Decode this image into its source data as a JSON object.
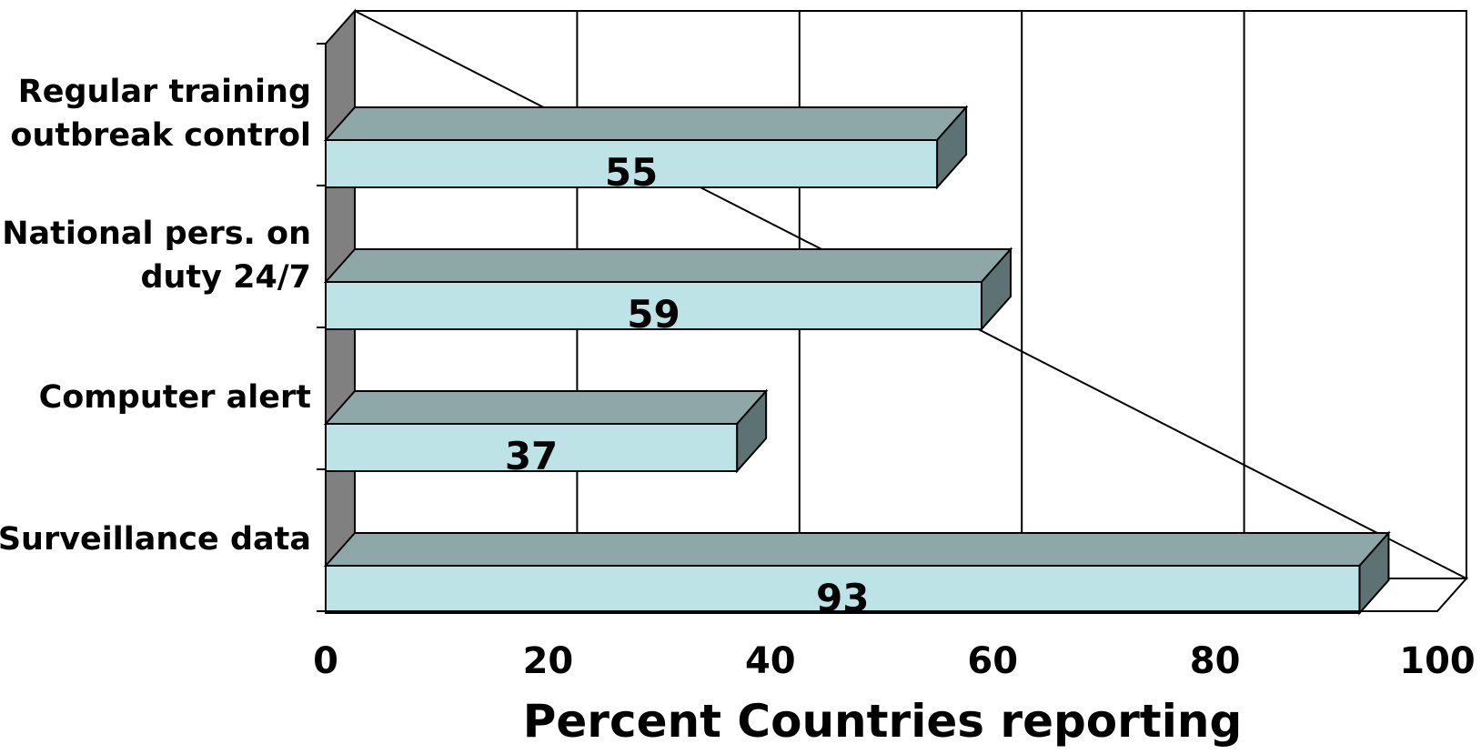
{
  "chart_data": {
    "type": "bar",
    "orientation": "horizontal",
    "categories": [
      [
        "Regular training",
        "outbreak control"
      ],
      [
        "National pers. on",
        "duty 24/7"
      ],
      [
        "Computer alert"
      ],
      [
        "Surveillance data"
      ]
    ],
    "values": [
      55,
      59,
      37,
      93
    ],
    "value_labels": [
      "55",
      "59",
      "37",
      "93"
    ],
    "xlabel": "Percent Countries reporting",
    "xlim": [
      0,
      100
    ],
    "xticks": [
      "0",
      "20",
      "40",
      "60",
      "80",
      "100"
    ],
    "grid": true,
    "three_d": true,
    "colors": {
      "bar_front": "#bde3e6",
      "bar_top": "#8ea8a9",
      "bar_side": "#5d7373",
      "wall": "#808080",
      "grid": "#000000"
    }
  }
}
